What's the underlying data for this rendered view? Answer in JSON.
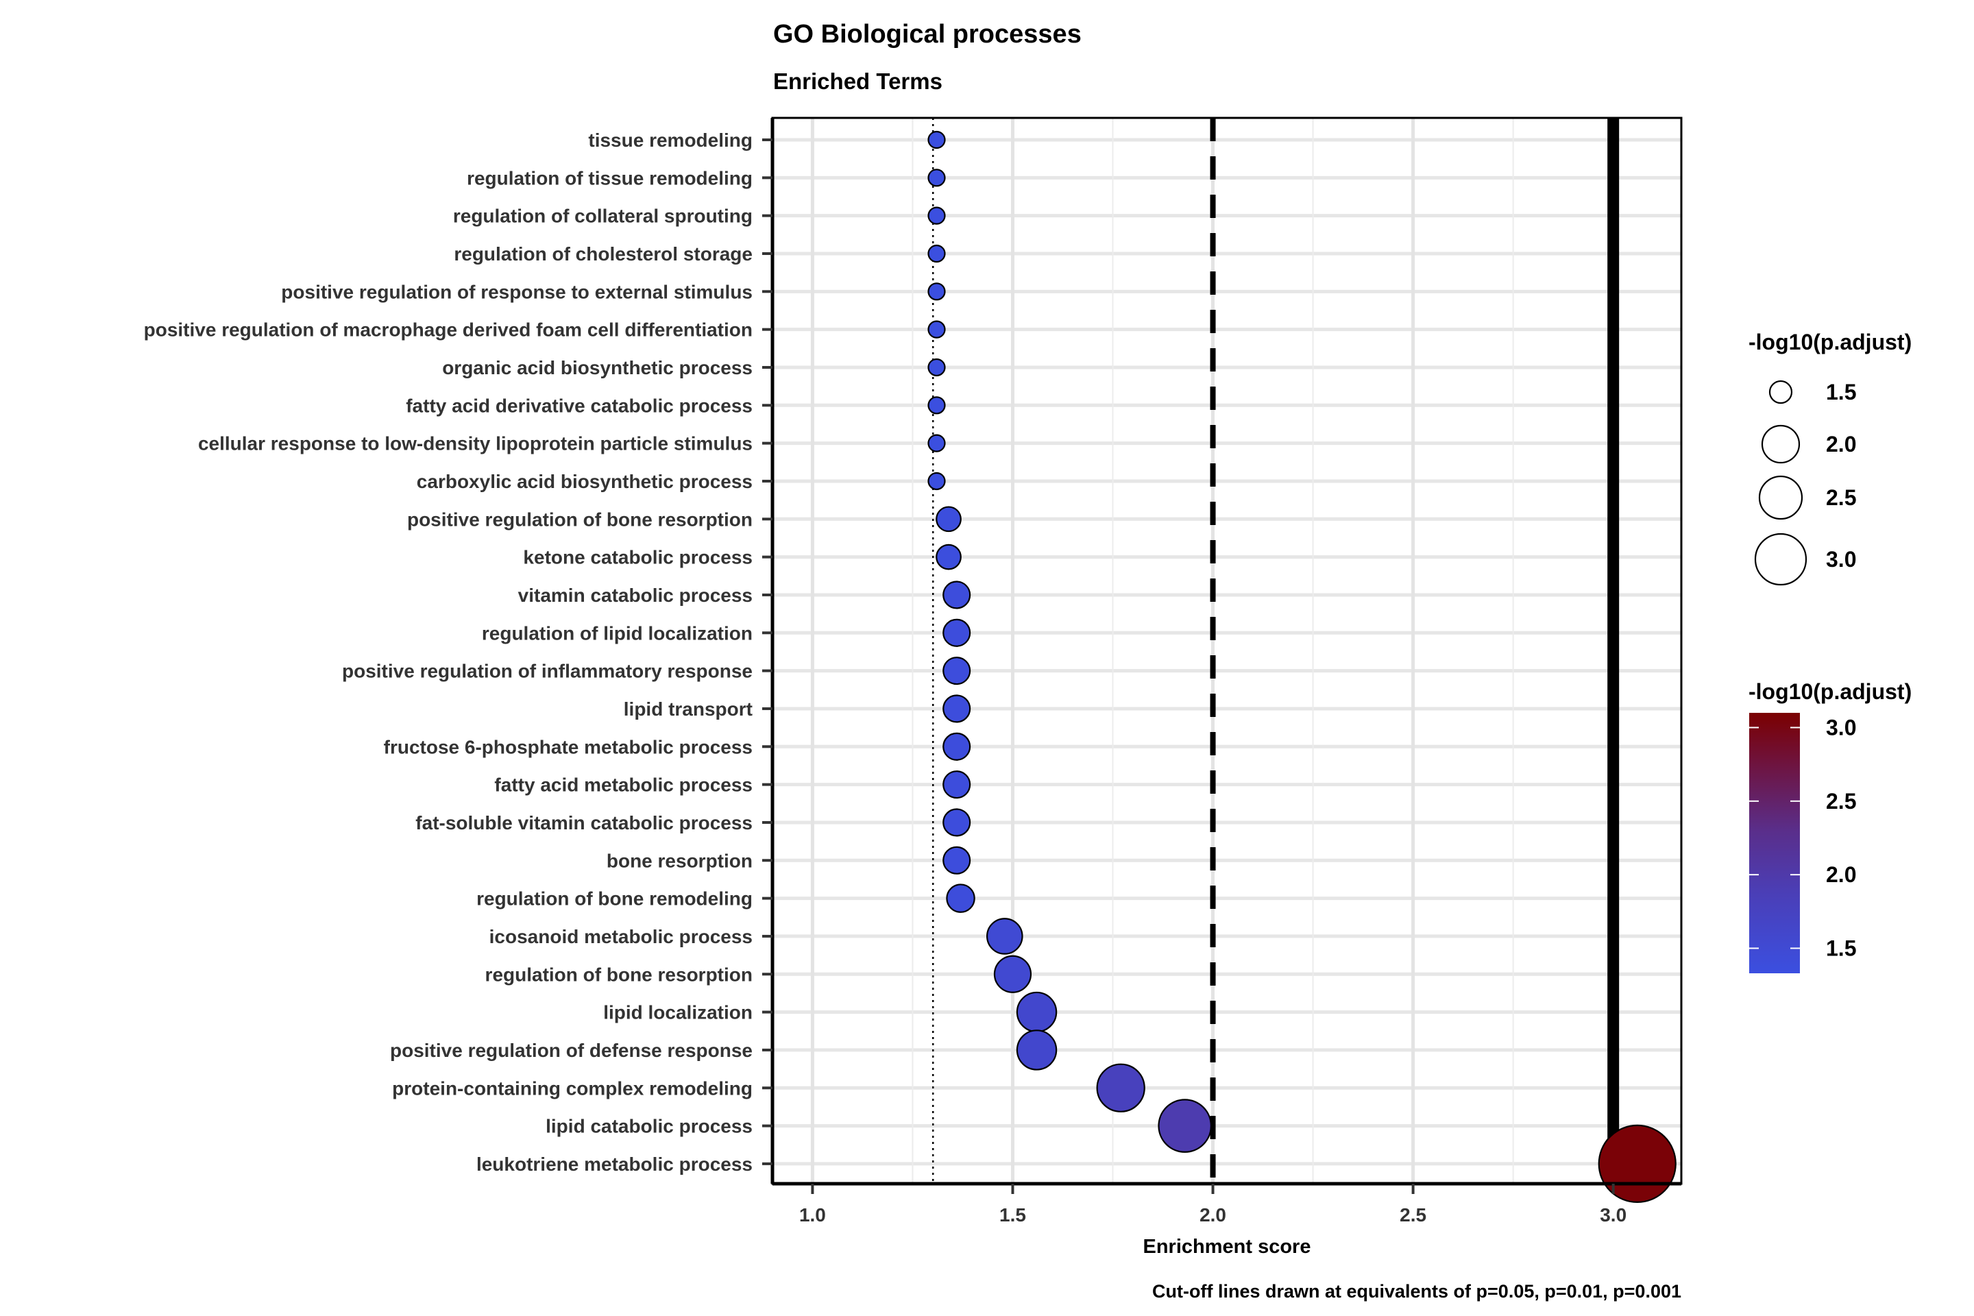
{
  "chart_data": {
    "type": "scatter",
    "title": "GO Biological processes",
    "subtitle": "Enriched Terms",
    "xlabel": "Enrichment score",
    "caption": "Cut-off lines drawn at equivalents of p=0.05, p=0.01, p=0.001",
    "xlim": [
      0.9,
      3.17
    ],
    "x_ticks": [
      "1.0",
      "1.5",
      "2.0",
      "2.5",
      "3.0"
    ],
    "grid": true,
    "cutoff_lines": [
      {
        "value": 1.301,
        "style": "dotted"
      },
      {
        "value": 2.0,
        "style": "dashed"
      },
      {
        "value": 3.0,
        "style": "solid"
      }
    ],
    "categories": [
      "tissue remodeling",
      "regulation of tissue remodeling",
      "regulation of collateral sprouting",
      "regulation of cholesterol storage",
      "positive regulation of response to external stimulus",
      "positive regulation of macrophage derived foam cell differentiation",
      "organic acid biosynthetic process",
      "fatty acid derivative catabolic process",
      "cellular response to low-density lipoprotein particle stimulus",
      "carboxylic acid biosynthetic process",
      "positive regulation of bone resorption",
      "ketone catabolic process",
      "vitamin catabolic process",
      "regulation of lipid localization",
      "positive regulation of inflammatory response",
      "lipid transport",
      "fructose 6-phosphate metabolic process",
      "fatty acid metabolic process",
      "fat-soluble vitamin catabolic process",
      "bone resorption",
      "regulation of bone remodeling",
      "icosanoid metabolic process",
      "regulation of bone resorption",
      "lipid localization",
      "positive regulation of defense response",
      "protein-containing complex remodeling",
      "lipid catabolic process",
      "leukotriene metabolic process"
    ],
    "values": [
      1.31,
      1.31,
      1.31,
      1.31,
      1.31,
      1.31,
      1.31,
      1.31,
      1.31,
      1.31,
      1.34,
      1.34,
      1.36,
      1.36,
      1.36,
      1.36,
      1.36,
      1.36,
      1.36,
      1.36,
      1.37,
      1.48,
      1.5,
      1.56,
      1.56,
      1.77,
      1.93,
      3.06
    ],
    "size_legend": {
      "title": "-log10(p.adjust)",
      "labels": [
        "1.5",
        "2.0",
        "2.5",
        "3.0"
      ]
    },
    "color_legend": {
      "title": "-log10(p.adjust)",
      "labels": [
        "3.0",
        "2.5",
        "2.0",
        "1.5"
      ],
      "low_color": "#3b4fe0",
      "high_color": "#7b0000"
    }
  }
}
